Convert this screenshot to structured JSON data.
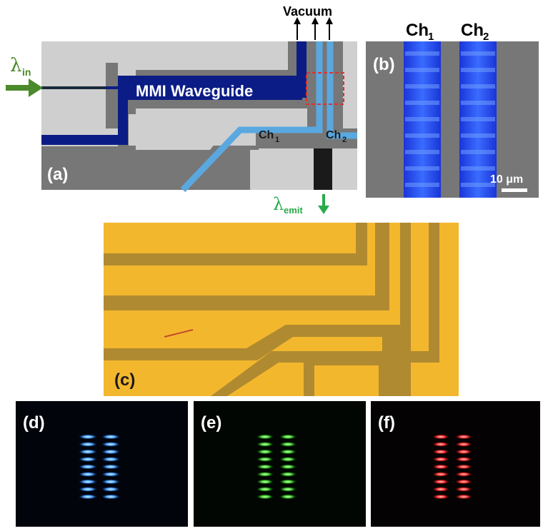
{
  "figure": {
    "panel_a": {
      "label": "(a)",
      "waveguide_label": "MMI Waveguide",
      "input_label": "λ",
      "input_sub": "in",
      "vacuum_label": "Vacuum",
      "ch1_label": "Ch",
      "ch1_sub": "1",
      "ch2_label": "Ch",
      "ch2_sub": "2",
      "emit_label": "λ",
      "emit_sub": "emit"
    },
    "panel_b": {
      "label": "(b)",
      "ch1_label": "Ch",
      "ch1_sub": "1",
      "ch2_label": "Ch",
      "ch2_sub": "2",
      "scale_label": "10 μm"
    },
    "panel_c": {
      "label": "(c)"
    },
    "panel_d": {
      "label": "(d)"
    },
    "panel_e": {
      "label": "(e)"
    },
    "panel_f": {
      "label": "(f)"
    }
  },
  "colors": {
    "chip_light": "#cfcfcf",
    "chip_dark": "#777777",
    "mmi_blue": "#0c1c86",
    "channel_blue": "#5aa8e0",
    "input_green": "#4a8a2a",
    "emit_green": "#2aaa4a",
    "gold": "#f3b72e",
    "gold_dark": "#b08a30",
    "blue_emit": "#4aa6ff",
    "green_emit": "#4ccf3a",
    "red_emit": "#ff3434"
  }
}
